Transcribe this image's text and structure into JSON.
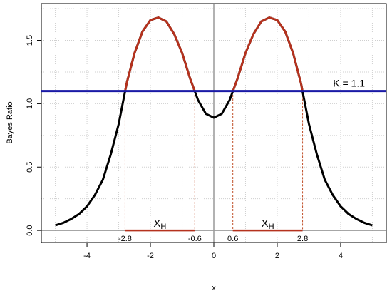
{
  "chart_data": {
    "type": "line",
    "xlabel": "x",
    "ylabel": "Bayes Ratio",
    "x": [
      -5,
      -4.75,
      -4.5,
      -4.25,
      -4,
      -3.75,
      -3.5,
      -3.25,
      -3,
      -2.75,
      -2.5,
      -2.25,
      -2,
      -1.75,
      -1.5,
      -1.25,
      -1,
      -0.75,
      -0.5,
      -0.25,
      0,
      0.25,
      0.5,
      0.75,
      1,
      1.25,
      1.5,
      1.75,
      2,
      2.25,
      2.5,
      2.75,
      3,
      3.25,
      3.5,
      3.75,
      4,
      4.25,
      4.5,
      4.75,
      5
    ],
    "series": [
      {
        "color": "#000000",
        "highlight_color": "#b5321e",
        "values": [
          0.04,
          0.06,
          0.09,
          0.13,
          0.19,
          0.28,
          0.4,
          0.6,
          0.84,
          1.16,
          1.4,
          1.57,
          1.66,
          1.68,
          1.65,
          1.55,
          1.4,
          1.2,
          1.03,
          0.92,
          0.89,
          0.92,
          1.03,
          1.2,
          1.4,
          1.55,
          1.65,
          1.68,
          1.66,
          1.57,
          1.4,
          1.16,
          0.84,
          0.6,
          0.4,
          0.28,
          0.19,
          0.13,
          0.09,
          0.06,
          0.04
        ]
      }
    ],
    "threshold": {
      "value": 1.1,
      "label": "K = 1.1",
      "color": "#1a1aa6"
    },
    "intervals": [
      {
        "from": -2.8,
        "to": -0.6,
        "label": "X",
        "subscript": "H"
      },
      {
        "from": 0.6,
        "to": 2.8,
        "label": "X",
        "subscript": "H"
      }
    ],
    "xlim": [
      -5.44,
      5.44
    ],
    "ylim": [
      -0.095,
      1.79
    ],
    "xticks": [
      -4,
      -2,
      0,
      2,
      4
    ],
    "yticks": [
      {
        "value": 0,
        "label": "0.0"
      },
      0.5,
      {
        "value": 1,
        "label": "1.0"
      },
      1.5
    ],
    "x_gridlines": [
      -5,
      -4,
      -3,
      -2,
      -1,
      1,
      2,
      3,
      4,
      5
    ],
    "y_gridlines": [
      0.25,
      0.5,
      0.75,
      1,
      1.25,
      1.5,
      1.75
    ],
    "grid": true
  }
}
